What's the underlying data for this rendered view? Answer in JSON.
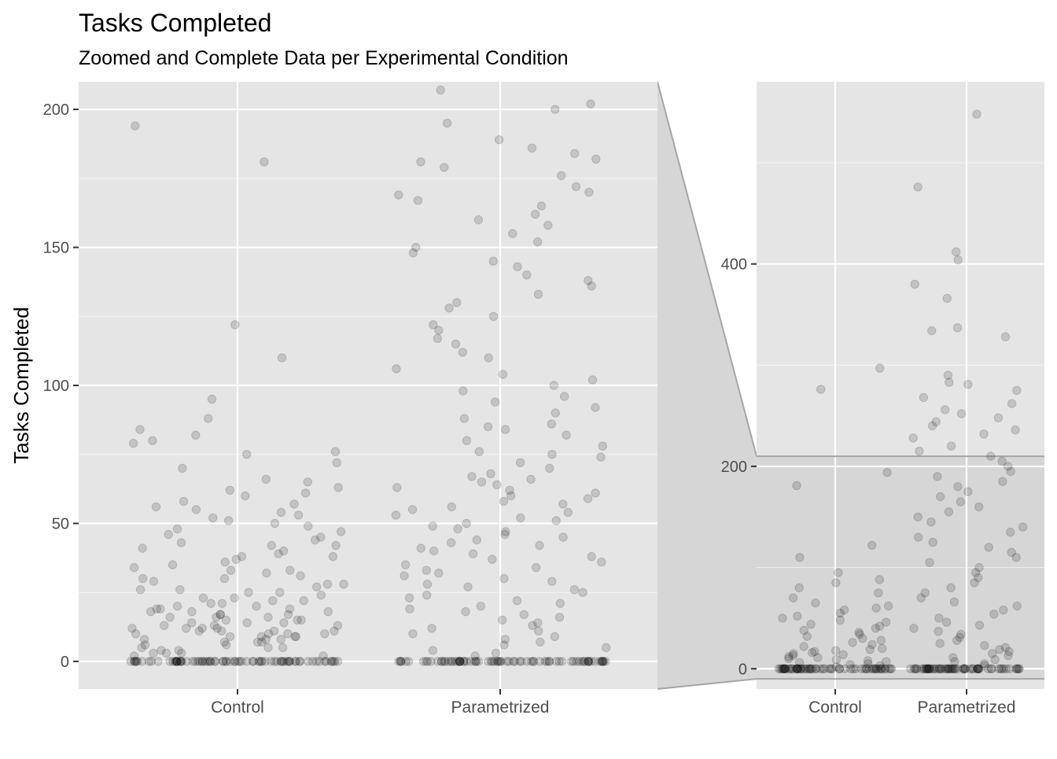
{
  "title": "Tasks Completed",
  "subtitle": "Zoomed and Complete Data per Experimental Condition",
  "ylabel": "Tasks Completed",
  "colors": {
    "panel_bg": "#e5e5e5",
    "grid": "#ffffff",
    "point": "#000000",
    "zoom_region": "#d6d6d6",
    "zoom_connector": "#a6a6a6",
    "axis_text": "#4d4d4d"
  },
  "chart_data": [
    {
      "type": "scatter",
      "panel": "zoomed",
      "geom": "jitter",
      "point_alpha": 0.15,
      "categories": [
        "Control",
        "Parametrized"
      ],
      "ylim": [
        -10,
        210
      ],
      "yticks": [
        0,
        50,
        100,
        150,
        200
      ],
      "grid": true,
      "series": [
        {
          "category": "Control",
          "values_visible": [
            0,
            0,
            0,
            0,
            0,
            0,
            0,
            0,
            0,
            0,
            0,
            0,
            0,
            0,
            0,
            0,
            0,
            0,
            0,
            0,
            0,
            0,
            0,
            0,
            0,
            0,
            0,
            0,
            0,
            0,
            0,
            0,
            0,
            0,
            0,
            0,
            0,
            0,
            0,
            0,
            0,
            0,
            0,
            0,
            0,
            0,
            0,
            0,
            0,
            0,
            0,
            0,
            0,
            0,
            0,
            0,
            0,
            0,
            0,
            0,
            0,
            0,
            0,
            0,
            0,
            0,
            0,
            0,
            0,
            0,
            0,
            0,
            0,
            0,
            0,
            0,
            0,
            0,
            0,
            0,
            2,
            2,
            3,
            3,
            3,
            4,
            4,
            5,
            5,
            5,
            6,
            6,
            7,
            7,
            7,
            8,
            8,
            8,
            9,
            9,
            9,
            9,
            10,
            10,
            10,
            10,
            11,
            11,
            11,
            11,
            12,
            12,
            12,
            12,
            13,
            13,
            13,
            14,
            14,
            14,
            15,
            15,
            15,
            16,
            16,
            16,
            17,
            17,
            17,
            18,
            18,
            18,
            19,
            19,
            19,
            20,
            20,
            21,
            21,
            22,
            22,
            23,
            23,
            24,
            25,
            25,
            26,
            26,
            27,
            28,
            28,
            29,
            30,
            30,
            31,
            32,
            33,
            33,
            34,
            35,
            36,
            37,
            38,
            38,
            39,
            40,
            41,
            42,
            42,
            43,
            44,
            45,
            46,
            47,
            48,
            49,
            50,
            51,
            52,
            53,
            54,
            55,
            56,
            57,
            58,
            60,
            61,
            62,
            63,
            65,
            66,
            70,
            72,
            75,
            76,
            79,
            80,
            82,
            84,
            88,
            95,
            110,
            122,
            181,
            194
          ],
          "note_values": "approximate, read from plot"
        },
        {
          "category": "Parametrized",
          "values_visible": [
            0,
            0,
            0,
            0,
            0,
            0,
            0,
            0,
            0,
            0,
            0,
            0,
            0,
            0,
            0,
            0,
            0,
            0,
            0,
            0,
            0,
            0,
            0,
            0,
            0,
            0,
            0,
            0,
            0,
            0,
            0,
            0,
            0,
            0,
            0,
            0,
            0,
            0,
            0,
            0,
            0,
            0,
            0,
            0,
            0,
            0,
            0,
            0,
            0,
            0,
            0,
            0,
            0,
            0,
            0,
            0,
            0,
            0,
            0,
            0,
            0,
            0,
            0,
            0,
            0,
            0,
            0,
            0,
            0,
            0,
            0,
            0,
            0,
            0,
            0,
            0,
            0,
            0,
            0,
            0,
            2,
            3,
            4,
            5,
            6,
            7,
            8,
            9,
            10,
            11,
            12,
            13,
            14,
            15,
            16,
            17,
            18,
            19,
            20,
            21,
            22,
            23,
            24,
            25,
            26,
            27,
            28,
            29,
            30,
            31,
            32,
            33,
            34,
            35,
            36,
            37,
            38,
            39,
            40,
            41,
            42,
            43,
            44,
            45,
            46,
            47,
            48,
            49,
            50,
            51,
            52,
            53,
            54,
            55,
            56,
            57,
            58,
            59,
            60,
            61,
            62,
            63,
            64,
            65,
            66,
            67,
            68,
            70,
            72,
            74,
            75,
            76,
            78,
            80,
            82,
            84,
            85,
            86,
            88,
            90,
            92,
            94,
            96,
            98,
            100,
            102,
            104,
            106,
            110,
            112,
            115,
            117,
            120,
            122,
            125,
            128,
            130,
            133,
            136,
            138,
            140,
            143,
            145,
            148,
            150,
            152,
            155,
            158,
            160,
            162,
            165,
            167,
            169,
            170,
            172,
            176,
            179,
            181,
            182,
            184,
            186,
            189,
            195,
            200,
            202,
            207
          ]
        }
      ]
    },
    {
      "type": "scatter",
      "panel": "complete",
      "geom": "jitter",
      "point_alpha": 0.15,
      "categories": [
        "Control",
        "Parametrized"
      ],
      "ylim": [
        -20,
        580
      ],
      "yticks": [
        0,
        200,
        400
      ],
      "zoom_region": [
        -10,
        210
      ],
      "grid": true,
      "series": [
        {
          "category": "Control",
          "values_visible": [
            0,
            0,
            0,
            0,
            0,
            0,
            0,
            0,
            0,
            0,
            0,
            0,
            0,
            0,
            0,
            0,
            0,
            0,
            0,
            0,
            0,
            0,
            0,
            0,
            0,
            0,
            0,
            0,
            0,
            0,
            0,
            0,
            0,
            0,
            0,
            0,
            0,
            0,
            0,
            0,
            0,
            0,
            0,
            0,
            0,
            0,
            0,
            0,
            0,
            0,
            0,
            0,
            0,
            0,
            0,
            0,
            0,
            0,
            0,
            0,
            0,
            0,
            0,
            0,
            2,
            3,
            4,
            5,
            6,
            7,
            8,
            9,
            10,
            11,
            12,
            13,
            14,
            15,
            16,
            17,
            18,
            19,
            20,
            22,
            24,
            26,
            28,
            30,
            32,
            34,
            36,
            38,
            40,
            42,
            44,
            46,
            48,
            50,
            52,
            55,
            58,
            60,
            62,
            65,
            70,
            75,
            80,
            85,
            88,
            95,
            110,
            122,
            181,
            194,
            276,
            297
          ]
        },
        {
          "category": "Parametrized",
          "values_visible": [
            0,
            0,
            0,
            0,
            0,
            0,
            0,
            0,
            0,
            0,
            0,
            0,
            0,
            0,
            0,
            0,
            0,
            0,
            0,
            0,
            0,
            0,
            0,
            0,
            0,
            0,
            0,
            0,
            0,
            0,
            0,
            0,
            0,
            0,
            0,
            0,
            0,
            0,
            0,
            0,
            0,
            0,
            0,
            0,
            0,
            0,
            0,
            0,
            0,
            0,
            0,
            0,
            0,
            0,
            0,
            0,
            0,
            0,
            0,
            0,
            0,
            0,
            0,
            0,
            3,
            5,
            7,
            9,
            11,
            13,
            15,
            17,
            19,
            21,
            23,
            25,
            28,
            31,
            34,
            37,
            40,
            43,
            46,
            50,
            54,
            58,
            62,
            66,
            70,
            75,
            80,
            85,
            90,
            95,
            100,
            105,
            110,
            115,
            120,
            125,
            130,
            135,
            140,
            145,
            150,
            155,
            160,
            165,
            170,
            175,
            180,
            185,
            190,
            195,
            200,
            205,
            210,
            215,
            220,
            228,
            232,
            236,
            240,
            244,
            248,
            252,
            256,
            262,
            268,
            275,
            281,
            283,
            290,
            328,
            334,
            337,
            366,
            380,
            404,
            412,
            476,
            548
          ]
        }
      ]
    }
  ]
}
